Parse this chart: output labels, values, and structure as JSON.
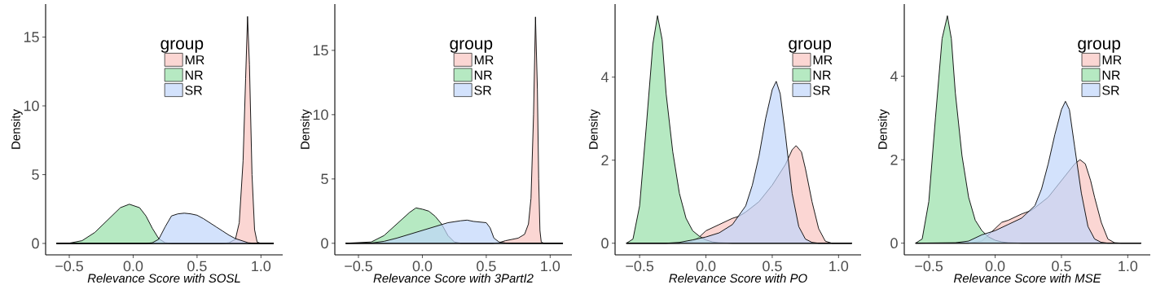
{
  "chart_data": [
    {
      "type": "area",
      "xlabel": "Relevance Score with SOSL",
      "ylabel": "Density",
      "legend_title": "group",
      "legend": "top",
      "xlim": [
        -0.685,
        1.17
      ],
      "ylim": [
        -0.83,
        17.4
      ],
      "xticks": [
        {
          "value": -0.5,
          "label": "−0.5"
        },
        {
          "value": 0,
          "label": "0.0"
        },
        {
          "value": 0.5,
          "label": "0.5"
        },
        {
          "value": 1,
          "label": "1.0"
        }
      ],
      "yticks": [
        0,
        5,
        10,
        15
      ],
      "series": [
        {
          "name": "MR",
          "color": "#f9c4c0",
          "x": [
            -0.6,
            0.7,
            0.75,
            0.8,
            0.83,
            0.86,
            0.88,
            0.895,
            0.91,
            0.93,
            0.95,
            0.97,
            1.0,
            1.1
          ],
          "values": [
            0,
            0,
            0.05,
            0.3,
            1.5,
            6,
            12,
            16.5,
            13,
            5,
            1,
            0.1,
            0,
            0
          ]
        },
        {
          "name": "NR",
          "color": "#97e0a8",
          "x": [
            -0.6,
            -0.5,
            -0.4,
            -0.3,
            -0.2,
            -0.1,
            -0.03,
            0.05,
            0.1,
            0.15,
            0.2,
            0.25,
            0.3,
            1.1
          ],
          "values": [
            0,
            0.02,
            0.2,
            0.8,
            1.7,
            2.6,
            2.85,
            2.6,
            2.0,
            1.1,
            0.35,
            0.05,
            0,
            0
          ]
        },
        {
          "name": "SR",
          "color": "#c0d6fb",
          "x": [
            -0.6,
            0.1,
            0.15,
            0.2,
            0.25,
            0.3,
            0.35,
            0.4,
            0.45,
            0.5,
            0.55,
            0.6,
            0.65,
            0.7,
            0.75,
            0.8,
            0.85,
            0.9,
            0.95,
            1.1
          ],
          "values": [
            0,
            0,
            0.05,
            0.3,
            1.2,
            2.0,
            2.15,
            2.2,
            2.15,
            2.05,
            1.8,
            1.5,
            1.2,
            0.9,
            0.6,
            0.35,
            0.2,
            0.05,
            0,
            0
          ]
        }
      ]
    },
    {
      "type": "area",
      "xlabel": "Relevance Score with 3PartI2",
      "ylabel": "Density",
      "legend_title": "group",
      "legend": "top",
      "xlim": [
        -0.685,
        1.17
      ],
      "ylim": [
        -0.9,
        18.6
      ],
      "xticks": [
        {
          "value": -0.5,
          "label": "−0.5"
        },
        {
          "value": 0,
          "label": "0.0"
        },
        {
          "value": 0.5,
          "label": "0.5"
        },
        {
          "value": 1,
          "label": "1.0"
        }
      ],
      "yticks": [
        0,
        5,
        10,
        15
      ],
      "series": [
        {
          "name": "MR",
          "color": "#f9c4c0",
          "x": [
            -0.6,
            0.55,
            0.6,
            0.65,
            0.7,
            0.75,
            0.8,
            0.83,
            0.85,
            0.87,
            0.885,
            0.9,
            0.91,
            0.92,
            0.93,
            0.95,
            1.1
          ],
          "values": [
            0,
            0,
            0.05,
            0.2,
            0.3,
            0.4,
            0.7,
            1.5,
            3.5,
            10,
            17.6,
            12,
            5,
            1,
            0.1,
            0,
            0
          ]
        },
        {
          "name": "NR",
          "color": "#97e0a8",
          "x": [
            -0.6,
            -0.4,
            -0.3,
            -0.2,
            -0.1,
            -0.05,
            0.0,
            0.05,
            0.1,
            0.15,
            0.2,
            0.25,
            0.3,
            1.1
          ],
          "values": [
            0,
            0.1,
            0.6,
            1.5,
            2.4,
            2.75,
            2.65,
            2.5,
            2.1,
            1.5,
            0.6,
            0.1,
            0,
            0
          ]
        },
        {
          "name": "SR",
          "color": "#c0d6fb",
          "x": [
            -0.6,
            -0.4,
            -0.3,
            -0.2,
            -0.1,
            0.0,
            0.1,
            0.2,
            0.3,
            0.35,
            0.4,
            0.45,
            0.5,
            0.53,
            0.56,
            0.6,
            0.65,
            0.7,
            1.1
          ],
          "values": [
            0,
            0.02,
            0.15,
            0.4,
            0.7,
            1.0,
            1.3,
            1.6,
            1.75,
            1.8,
            1.7,
            1.65,
            1.6,
            1.2,
            0.4,
            0.1,
            0.02,
            0,
            0
          ]
        }
      ]
    },
    {
      "type": "area",
      "xlabel": "Relevance Score with PO",
      "ylabel": "Density",
      "legend_title": "group",
      "legend": "top right",
      "xlim": [
        -0.685,
        1.17
      ],
      "ylim": [
        -0.28,
        5.76
      ],
      "xticks": [
        {
          "value": -0.5,
          "label": "−0.5"
        },
        {
          "value": 0,
          "label": "0.0"
        },
        {
          "value": 0.5,
          "label": "0.5"
        },
        {
          "value": 1,
          "label": "1.0"
        }
      ],
      "yticks": [
        0,
        2,
        4
      ],
      "series": [
        {
          "name": "MR",
          "color": "#f9c4c0",
          "x": [
            -0.6,
            -0.2,
            -0.1,
            -0.05,
            0.0,
            0.1,
            0.2,
            0.25,
            0.3,
            0.4,
            0.5,
            0.6,
            0.65,
            0.68,
            0.72,
            0.75,
            0.8,
            0.85,
            0.9,
            0.95,
            1.1
          ],
          "values": [
            0,
            0,
            0.05,
            0.15,
            0.3,
            0.45,
            0.6,
            0.65,
            0.75,
            1.0,
            1.4,
            1.9,
            2.25,
            2.35,
            2.2,
            1.8,
            1.0,
            0.35,
            0.05,
            0,
            0
          ]
        },
        {
          "name": "NR",
          "color": "#97e0a8",
          "x": [
            -0.6,
            -0.55,
            -0.5,
            -0.45,
            -0.4,
            -0.365,
            -0.33,
            -0.3,
            -0.25,
            -0.2,
            -0.15,
            -0.1,
            -0.05,
            0.0,
            0.05,
            0.1,
            0.2,
            1.1
          ],
          "values": [
            0,
            0.1,
            0.9,
            2.8,
            4.8,
            5.48,
            4.9,
            3.6,
            2.2,
            1.2,
            0.6,
            0.3,
            0.17,
            0.08,
            0.03,
            0.01,
            0,
            0
          ]
        },
        {
          "name": "SR",
          "color": "#c0d6fb",
          "x": [
            -0.6,
            -0.3,
            -0.2,
            -0.1,
            0.0,
            0.1,
            0.2,
            0.3,
            0.35,
            0.4,
            0.45,
            0.5,
            0.53,
            0.56,
            0.6,
            0.65,
            0.7,
            0.75,
            0.8,
            0.85,
            1.1
          ],
          "values": [
            0,
            0,
            0.02,
            0.08,
            0.15,
            0.25,
            0.45,
            0.9,
            1.4,
            2.1,
            3.0,
            3.7,
            3.9,
            3.6,
            2.6,
            1.2,
            0.4,
            0.1,
            0.02,
            0,
            0
          ]
        }
      ]
    },
    {
      "type": "area",
      "xlabel": "Relevance Score with MSE",
      "ylabel": "Density",
      "legend_title": "group",
      "legend": "top right",
      "xlim": [
        -0.685,
        1.17
      ],
      "ylim": [
        -0.28,
        5.73
      ],
      "xticks": [
        {
          "value": -0.5,
          "label": "−0.5"
        },
        {
          "value": 0,
          "label": "0.0"
        },
        {
          "value": 0.5,
          "label": "0.5"
        },
        {
          "value": 1,
          "label": "1.0"
        }
      ],
      "yticks": [
        0,
        2,
        4
      ],
      "series": [
        {
          "name": "MR",
          "color": "#f9c4c0",
          "x": [
            -0.6,
            -0.2,
            -0.1,
            -0.05,
            0.0,
            0.05,
            0.1,
            0.2,
            0.27,
            0.3,
            0.4,
            0.5,
            0.6,
            0.64,
            0.68,
            0.72,
            0.75,
            0.8,
            0.85,
            0.9,
            0.95,
            1.1
          ],
          "values": [
            0,
            0,
            0.05,
            0.2,
            0.35,
            0.5,
            0.55,
            0.7,
            0.78,
            0.85,
            1.1,
            1.5,
            1.9,
            2.0,
            1.9,
            1.5,
            1.1,
            0.5,
            0.1,
            0.01,
            0,
            0
          ]
        },
        {
          "name": "NR",
          "color": "#97e0a8",
          "x": [
            -0.6,
            -0.55,
            -0.5,
            -0.45,
            -0.4,
            -0.36,
            -0.33,
            -0.3,
            -0.25,
            -0.2,
            -0.15,
            -0.1,
            -0.05,
            0.0,
            0.05,
            0.1,
            0.2,
            1.1
          ],
          "values": [
            0,
            0.1,
            1.0,
            3.0,
            4.9,
            5.45,
            4.9,
            3.6,
            2.1,
            1.1,
            0.55,
            0.3,
            0.15,
            0.07,
            0.03,
            0.01,
            0,
            0
          ]
        },
        {
          "name": "SR",
          "color": "#c0d6fb",
          "x": [
            -0.6,
            -0.3,
            -0.2,
            -0.1,
            0.0,
            0.1,
            0.2,
            0.25,
            0.3,
            0.35,
            0.4,
            0.45,
            0.5,
            0.53,
            0.56,
            0.6,
            0.65,
            0.7,
            0.75,
            0.8,
            0.85,
            1.1
          ],
          "values": [
            0,
            0.01,
            0.05,
            0.2,
            0.3,
            0.45,
            0.6,
            0.75,
            0.9,
            1.3,
            1.9,
            2.6,
            3.2,
            3.4,
            3.2,
            2.3,
            1.2,
            0.4,
            0.1,
            0.02,
            0,
            0
          ]
        }
      ]
    }
  ]
}
